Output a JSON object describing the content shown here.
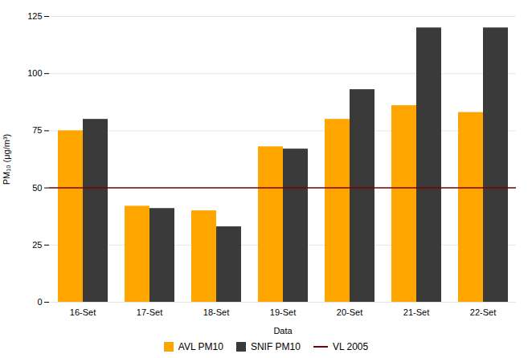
{
  "chart_data": {
    "type": "bar",
    "categories": [
      "16-Set",
      "17-Set",
      "18-Set",
      "19-Set",
      "20-Set",
      "21-Set",
      "22-Set"
    ],
    "series": [
      {
        "name": "AVL PM10",
        "color": "#FFA500",
        "values": [
          75,
          42,
          40,
          68,
          80,
          86,
          83
        ]
      },
      {
        "name": "SNIF PM10",
        "color": "#3A3A3A",
        "values": [
          80,
          41,
          33,
          67,
          93,
          120,
          120
        ]
      }
    ],
    "reference_lines": [
      {
        "name": "VL 2005",
        "value": 50,
        "color": "#7B0000"
      }
    ],
    "xlabel": "Data",
    "ylabel": "PM₁₀ (μg/m³)",
    "ylim": [
      0,
      125
    ],
    "yticks": [
      0,
      25,
      50,
      75,
      100,
      125
    ],
    "grid": true,
    "legend": "bottom"
  }
}
